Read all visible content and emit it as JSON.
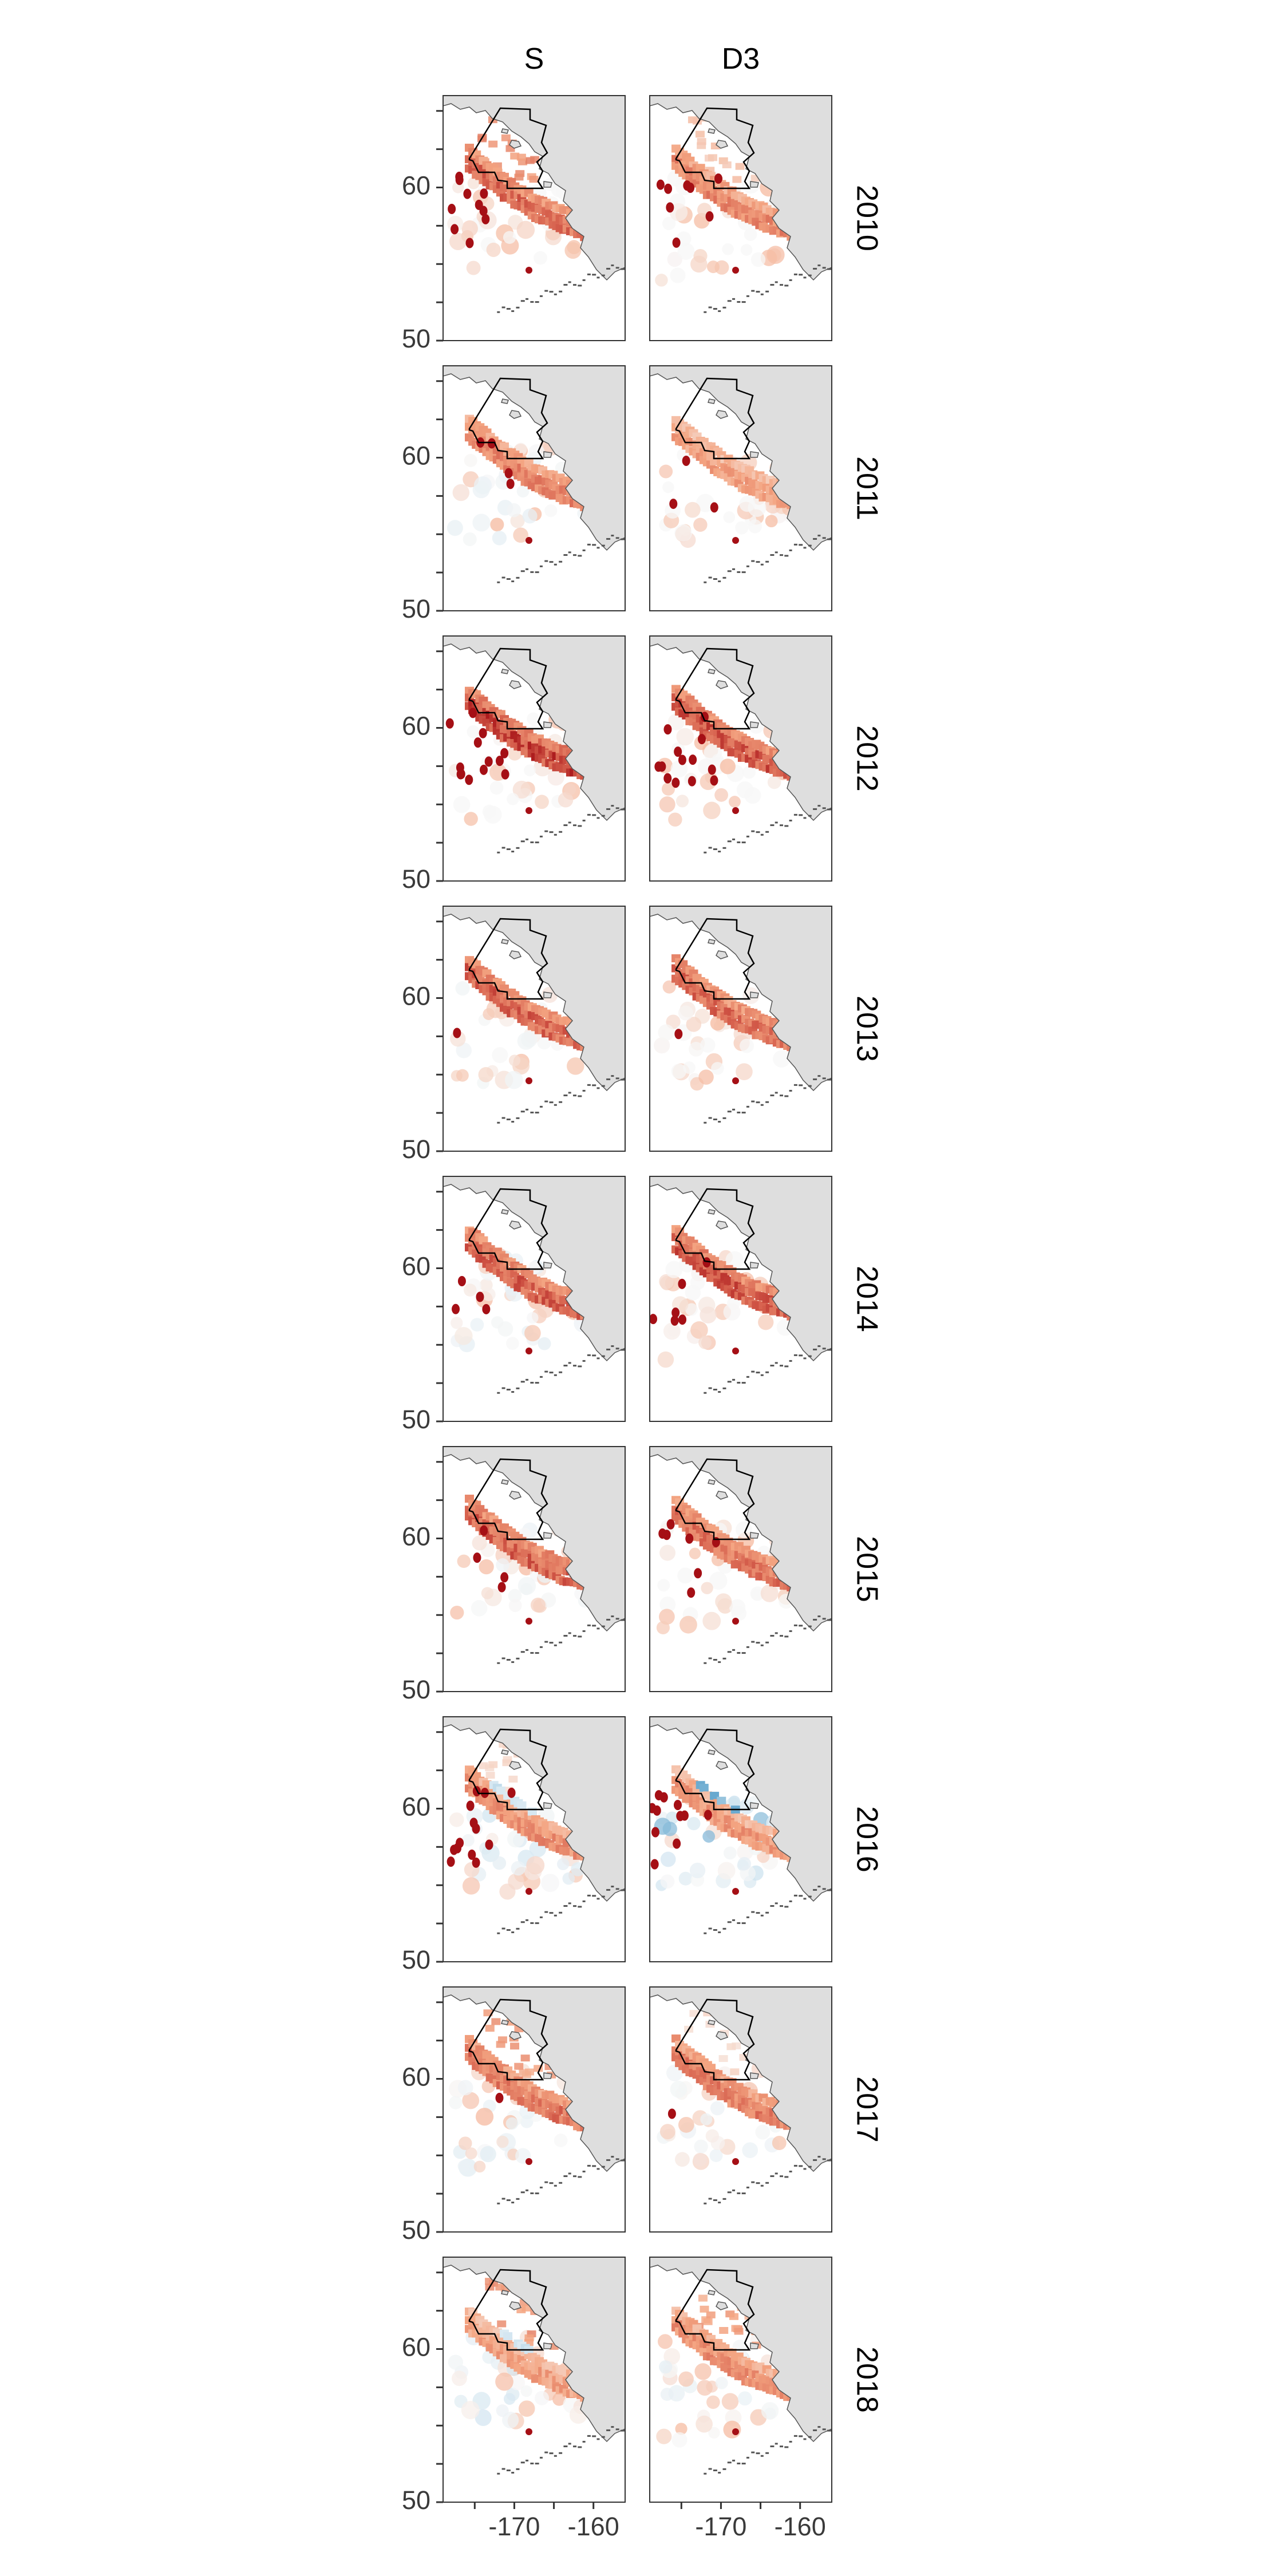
{
  "chart_data": {
    "type": "heatmap",
    "title": "",
    "columns": [
      "S",
      "D3"
    ],
    "rows": [
      "2010",
      "2011",
      "2012",
      "2013",
      "2014",
      "2015",
      "2016",
      "2017",
      "2018"
    ],
    "x_ticks": [
      {
        "value": -170,
        "label": "-170"
      },
      {
        "value": -160,
        "label": "-160"
      }
    ],
    "y_ticks": [
      {
        "value": 50,
        "label": "50"
      },
      {
        "value": 60,
        "label": "60"
      }
    ],
    "xlim": [
      -179,
      -156
    ],
    "ylim": [
      50,
      66
    ],
    "xlabel": "",
    "ylabel": "",
    "colors": {
      "land": "#dedede",
      "coast": "#555555",
      "boundary": "#000000",
      "strong_positive": "#a50f15",
      "positive": "#d6604d",
      "light_positive": "#f4a582",
      "neutral": "#f7f7f7",
      "light_negative": "#d1e5f0",
      "negative": "#4393c3",
      "strong_negative": "#2166ac"
    },
    "panels": [
      {
        "row": "2010",
        "column": "S",
        "band_intensity": 0.75,
        "neg_strength": 0.0,
        "north_intensity": 0.55,
        "west_dots": 0.7
      },
      {
        "row": "2010",
        "column": "D3",
        "band_intensity": 0.6,
        "neg_strength": 0.0,
        "north_intensity": 0.25,
        "west_dots": 0.6
      },
      {
        "row": "2011",
        "column": "S",
        "band_intensity": 0.6,
        "neg_strength": 0.2,
        "north_intensity": 0.0,
        "west_dots": 0.3
      },
      {
        "row": "2011",
        "column": "D3",
        "band_intensity": 0.45,
        "neg_strength": 0.0,
        "north_intensity": 0.0,
        "west_dots": 0.2
      },
      {
        "row": "2012",
        "column": "S",
        "band_intensity": 0.95,
        "neg_strength": 0.0,
        "north_intensity": 0.0,
        "west_dots": 0.9
      },
      {
        "row": "2012",
        "column": "D3",
        "band_intensity": 0.85,
        "neg_strength": 0.0,
        "north_intensity": 0.0,
        "west_dots": 0.9
      },
      {
        "row": "2013",
        "column": "S",
        "band_intensity": 0.8,
        "neg_strength": 0.1,
        "north_intensity": 0.0,
        "west_dots": 0.1
      },
      {
        "row": "2013",
        "column": "D3",
        "band_intensity": 0.75,
        "neg_strength": 0.0,
        "north_intensity": 0.0,
        "west_dots": 0.1
      },
      {
        "row": "2014",
        "column": "S",
        "band_intensity": 0.8,
        "neg_strength": 0.25,
        "north_intensity": 0.0,
        "west_dots": 0.3
      },
      {
        "row": "2014",
        "column": "D3",
        "band_intensity": 0.85,
        "neg_strength": 0.0,
        "north_intensity": 0.0,
        "west_dots": 0.4
      },
      {
        "row": "2015",
        "column": "S",
        "band_intensity": 0.8,
        "neg_strength": 0.15,
        "north_intensity": 0.0,
        "west_dots": 0.3
      },
      {
        "row": "2015",
        "column": "D3",
        "band_intensity": 0.7,
        "neg_strength": 0.0,
        "north_intensity": 0.0,
        "west_dots": 0.5
      },
      {
        "row": "2016",
        "column": "S",
        "band_intensity": 0.55,
        "neg_strength": 0.45,
        "north_intensity": 0.15,
        "west_dots": 0.9
      },
      {
        "row": "2016",
        "column": "D3",
        "band_intensity": 0.5,
        "neg_strength": 0.7,
        "north_intensity": 0.0,
        "west_dots": 0.8
      },
      {
        "row": "2017",
        "column": "S",
        "band_intensity": 0.7,
        "neg_strength": 0.25,
        "north_intensity": 0.45,
        "west_dots": 0.1
      },
      {
        "row": "2017",
        "column": "D3",
        "band_intensity": 0.65,
        "neg_strength": 0.15,
        "north_intensity": 0.15,
        "west_dots": 0.1
      },
      {
        "row": "2018",
        "column": "S",
        "band_intensity": 0.45,
        "neg_strength": 0.45,
        "north_intensity": 0.5,
        "west_dots": 0.0
      },
      {
        "row": "2018",
        "column": "D3",
        "band_intensity": 0.55,
        "neg_strength": 0.25,
        "north_intensity": 0.45,
        "west_dots": 0.0
      }
    ]
  }
}
